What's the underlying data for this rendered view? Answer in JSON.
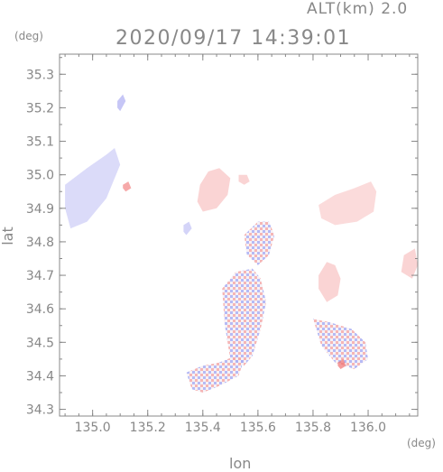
{
  "header": {
    "altitude": "ALT(km)  2.0",
    "timestamp": "2020/09/17 14:39:01"
  },
  "axes": {
    "x_unit": "(deg)",
    "y_unit": "(deg)",
    "x_label": "lon",
    "y_label": "lat"
  },
  "chart_data": {
    "type": "heatmap",
    "xlabel": "lon",
    "ylabel": "lat",
    "xlim": [
      134.88,
      136.18
    ],
    "ylim": [
      34.28,
      35.36
    ],
    "x_ticks": [
      135.0,
      135.2,
      135.4,
      135.6,
      135.8,
      136.0
    ],
    "y_ticks": [
      34.3,
      34.4,
      34.5,
      34.6,
      34.7,
      34.8,
      34.9,
      35.0,
      35.1,
      35.2,
      35.3
    ],
    "x_tick_labels": [
      "135.0",
      "135.2",
      "135.4",
      "135.6",
      "135.8",
      "136.0"
    ],
    "y_tick_labels": [
      "34.3",
      "34.4",
      "34.5",
      "34.6",
      "34.7",
      "34.8",
      "34.9",
      "35.0",
      "35.1",
      "35.2",
      "35.3"
    ],
    "colors": {
      "positive": "#f07070",
      "negative": "#7070e8",
      "frame": "#888888"
    },
    "regions": [
      {
        "sign": "neg",
        "intensity": 0.25,
        "lon": [
          134.9,
          134.98,
          135.05,
          135.08,
          135.1,
          135.05,
          134.98,
          134.92,
          134.9
        ],
        "lat": [
          34.97,
          35.02,
          35.06,
          35.08,
          35.03,
          34.93,
          34.86,
          34.84,
          34.9
        ]
      },
      {
        "sign": "pos",
        "intensity": 0.6,
        "lon": [
          135.11,
          135.13,
          135.14,
          135.12,
          135.11
        ],
        "lat": [
          34.97,
          34.98,
          34.96,
          34.95,
          34.96
        ]
      },
      {
        "sign": "neg",
        "intensity": 0.4,
        "lon": [
          135.09,
          135.11,
          135.12,
          135.1,
          135.09
        ],
        "lat": [
          35.22,
          35.24,
          35.22,
          35.19,
          35.2
        ]
      },
      {
        "sign": "neg",
        "intensity": 0.3,
        "lon": [
          135.33,
          135.35,
          135.36,
          135.34,
          135.33
        ],
        "lat": [
          34.85,
          34.86,
          34.84,
          34.82,
          34.83
        ]
      },
      {
        "sign": "pos",
        "intensity": 0.3,
        "lon": [
          135.39,
          135.42,
          135.46,
          135.5,
          135.49,
          135.45,
          135.4,
          135.38,
          135.39
        ],
        "lat": [
          34.97,
          35.01,
          35.02,
          34.99,
          34.94,
          34.9,
          34.89,
          34.92,
          34.97
        ]
      },
      {
        "sign": "pos",
        "intensity": 0.3,
        "lon": [
          135.53,
          135.56,
          135.57,
          135.55,
          135.53
        ],
        "lat": [
          35.0,
          35.0,
          34.98,
          34.97,
          34.98
        ]
      },
      {
        "sign": "pos",
        "intensity": 0.25,
        "lon": [
          135.82,
          135.88,
          135.95,
          136.01,
          136.03,
          136.02,
          135.96,
          135.88,
          135.83,
          135.82
        ],
        "lat": [
          34.91,
          34.94,
          34.96,
          34.98,
          34.95,
          34.89,
          34.86,
          34.85,
          34.87,
          34.91
        ]
      },
      {
        "sign": "pos",
        "intensity": 0.3,
        "lon": [
          136.13,
          136.17,
          136.18,
          136.16,
          136.12,
          136.13
        ],
        "lat": [
          34.76,
          34.78,
          34.73,
          34.69,
          34.71,
          34.76
        ]
      },
      {
        "sign": "pos",
        "intensity": 0.3,
        "lon": [
          135.82,
          135.85,
          135.88,
          135.9,
          135.89,
          135.85,
          135.82,
          135.82
        ],
        "lat": [
          34.7,
          34.74,
          34.73,
          34.69,
          34.64,
          34.62,
          34.66,
          34.7
        ]
      },
      {
        "sign": "mix",
        "intensity": 0.4,
        "lon": [
          135.55,
          135.6,
          135.64,
          135.66,
          135.64,
          135.6,
          135.56,
          135.55
        ],
        "lat": [
          34.82,
          34.86,
          34.86,
          34.82,
          34.76,
          34.73,
          34.76,
          34.82
        ]
      },
      {
        "sign": "mix",
        "intensity": 0.45,
        "lon": [
          135.47,
          135.52,
          135.58,
          135.61,
          135.63,
          135.61,
          135.58,
          135.55,
          135.5,
          135.48,
          135.47
        ],
        "lat": [
          34.66,
          34.71,
          34.72,
          34.69,
          34.62,
          34.54,
          34.46,
          34.43,
          34.45,
          34.55,
          34.66
        ]
      },
      {
        "sign": "mix",
        "intensity": 0.35,
        "lon": [
          135.34,
          135.4,
          135.46,
          135.52,
          135.55,
          135.53,
          135.46,
          135.4,
          135.36,
          135.34
        ],
        "lat": [
          34.41,
          34.43,
          34.44,
          34.46,
          34.45,
          34.4,
          34.37,
          34.35,
          34.36,
          34.41
        ]
      },
      {
        "sign": "mix",
        "intensity": 0.4,
        "lon": [
          135.8,
          135.86,
          135.94,
          135.99,
          136.0,
          135.95,
          135.88,
          135.83,
          135.8
        ],
        "lat": [
          34.57,
          34.56,
          34.54,
          34.5,
          34.45,
          34.42,
          34.44,
          34.49,
          34.57
        ]
      },
      {
        "sign": "pos",
        "intensity": 0.7,
        "lon": [
          135.89,
          135.91,
          135.92,
          135.9,
          135.89
        ],
        "lat": [
          34.44,
          34.45,
          34.43,
          34.42,
          34.43
        ]
      }
    ]
  }
}
